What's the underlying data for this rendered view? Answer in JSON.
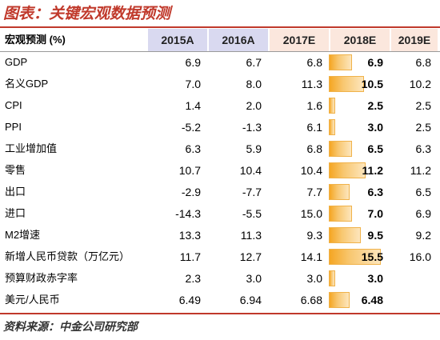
{
  "title": "图表：关键宏观数据预测",
  "header": {
    "label": "宏观预测 (%)",
    "columns": [
      "2015A",
      "2016A",
      "2017E",
      "2018E",
      "2019E"
    ],
    "colors": {
      "actual": "#d9d9f0",
      "estimate": "#fbe7dd"
    }
  },
  "rows": [
    {
      "label": "GDP",
      "values": [
        "6.9",
        "6.7",
        "6.8",
        "6.9",
        "6.8"
      ],
      "highlight": 0.22
    },
    {
      "label": "名义GDP",
      "values": [
        "7.0",
        "8.0",
        "11.3",
        "10.5",
        "10.2"
      ],
      "highlight": 0.33
    },
    {
      "label": "CPI",
      "values": [
        "1.4",
        "2.0",
        "1.6",
        "2.5",
        "2.5"
      ],
      "highlight": 0.05
    },
    {
      "label": "PPI",
      "values": [
        "-5.2",
        "-1.3",
        "6.1",
        "3.0",
        "2.5"
      ],
      "highlight": 0.05
    },
    {
      "label": "工业增加值",
      "values": [
        "6.3",
        "5.9",
        "6.8",
        "6.5",
        "6.3"
      ],
      "highlight": 0.22
    },
    {
      "label": "零售",
      "values": [
        "10.7",
        "10.4",
        "10.4",
        "11.2",
        "11.2"
      ],
      "highlight": 0.35
    },
    {
      "label": "出口",
      "values": [
        "-2.9",
        "-7.7",
        "7.7",
        "6.3",
        "6.5"
      ],
      "highlight": 0.2
    },
    {
      "label": "进口",
      "values": [
        "-14.3",
        "-5.5",
        "15.0",
        "7.0",
        "6.9"
      ],
      "highlight": 0.22
    },
    {
      "label": "M2增速",
      "values": [
        "13.3",
        "11.3",
        "9.3",
        "9.5",
        "9.2"
      ],
      "highlight": 0.3
    },
    {
      "label": "新增人民币贷款（万亿元）",
      "values": [
        "11.7",
        "12.7",
        "14.1",
        "15.5",
        "16.0"
      ],
      "highlight": 0.49
    },
    {
      "label": "预算财政赤字率",
      "values": [
        "2.3",
        "3.0",
        "3.0",
        "3.0",
        ""
      ],
      "highlight": 0.05
    },
    {
      "label": "美元/人民币",
      "values": [
        "6.49",
        "6.94",
        "6.68",
        "6.48",
        ""
      ],
      "highlight": 0.2
    }
  ],
  "source": "资料来源：中金公司研究部"
}
